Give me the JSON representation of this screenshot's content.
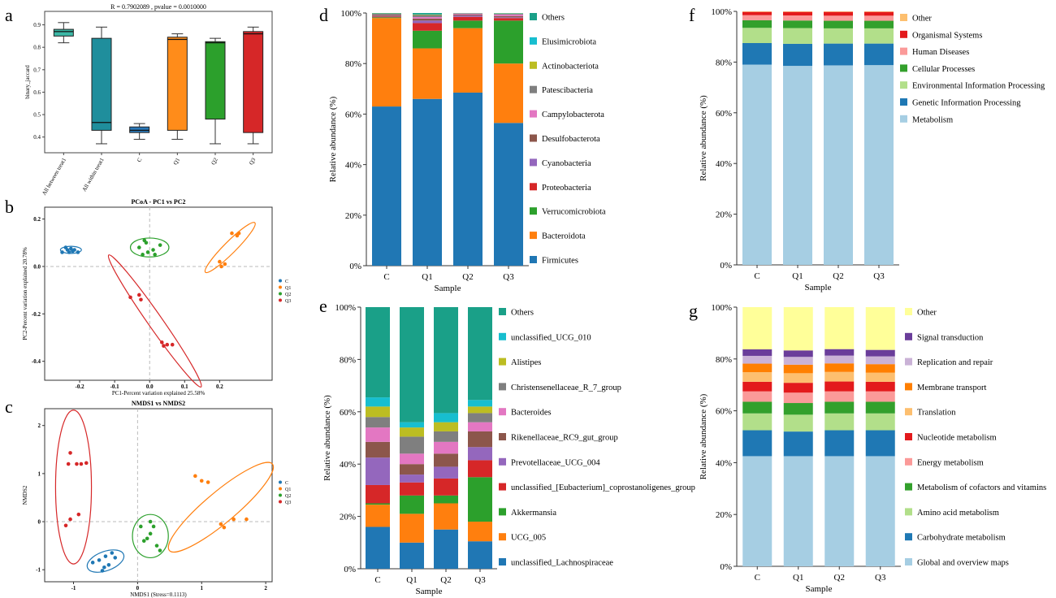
{
  "labels": {
    "a": "a",
    "b": "b",
    "c": "c",
    "d": "d",
    "e": "e",
    "f": "f",
    "g": "g"
  },
  "colors": {
    "ellipse_C": "#1f77b4",
    "ellipse_Q1": "#ff7f0e",
    "ellipse_Q2": "#2ca02c",
    "ellipse_Q3": "#d62728"
  },
  "chart_data": [
    {
      "id": "a",
      "type": "box",
      "title": "R = 0.7902089 , pvalue = 0.0010000",
      "ylabel": "binary_jaccard",
      "ylim": [
        0.33,
        0.96
      ],
      "yticks": [
        0.4,
        0.5,
        0.6,
        0.7,
        0.8,
        0.9
      ],
      "categories": [
        "All between treat1",
        "All within treat1",
        "C",
        "Q1",
        "Q2",
        "Q3"
      ],
      "colors": [
        "#3cb8a6",
        "#1f8e9c",
        "#2a78b8",
        "#ff8c1a",
        "#2ca02c",
        "#d62728"
      ],
      "boxes": [
        {
          "min": 0.82,
          "q1": 0.85,
          "median": 0.87,
          "q3": 0.88,
          "max": 0.91
        },
        {
          "min": 0.37,
          "q1": 0.43,
          "median": 0.465,
          "q3": 0.84,
          "max": 0.89
        },
        {
          "min": 0.39,
          "q1": 0.42,
          "median": 0.43,
          "q3": 0.445,
          "max": 0.46
        },
        {
          "min": 0.39,
          "q1": 0.43,
          "median": 0.835,
          "q3": 0.845,
          "max": 0.86
        },
        {
          "min": 0.37,
          "q1": 0.48,
          "median": 0.82,
          "q3": 0.825,
          "max": 0.84
        },
        {
          "min": 0.37,
          "q1": 0.42,
          "median": 0.86,
          "q3": 0.87,
          "max": 0.89
        }
      ]
    },
    {
      "id": "b",
      "type": "scatter",
      "title": "PCoA - PC1 vs PC2",
      "xlabel": "PC1-Percent variation explained 25.58%",
      "ylabel": "PC2-Percent variation explained 20.78%",
      "xlim": [
        -0.3,
        0.35
      ],
      "ylim": [
        -0.48,
        0.25
      ],
      "xticks": [
        -0.2,
        -0.1,
        0,
        0.1,
        0.2
      ],
      "xticklabels": [
        "-0.2",
        "-0.1",
        "0.0",
        "0.1",
        "0.2"
      ],
      "yticks": [
        0.2,
        0,
        -0.2,
        -0.4
      ],
      "yticklabels": [
        "0.2",
        "0.0",
        "-0.2",
        "-0.4"
      ],
      "legend": [
        "C",
        "Q1",
        "Q2",
        "Q3"
      ],
      "legend_position": "right",
      "series": [
        {
          "name": "C",
          "color": "#1f77b4",
          "points": [
            [
              -0.25,
              0.06
            ],
            [
              -0.24,
              0.08
            ],
            [
              -0.235,
              0.07
            ],
            [
              -0.23,
              0.06
            ],
            [
              -0.225,
              0.075
            ],
            [
              -0.22,
              0.065
            ],
            [
              -0.215,
              0.07
            ],
            [
              -0.205,
              0.06
            ]
          ],
          "ellipse": {
            "cx": -0.225,
            "cy": 0.07,
            "rx": 0.03,
            "ry": 0.015,
            "angle": 0
          }
        },
        {
          "name": "Q1",
          "color": "#ff7f0e",
          "points": [
            [
              0.2,
              0.02
            ],
            [
              0.205,
              0
            ],
            [
              0.215,
              0.01
            ],
            [
              0.235,
              0.14
            ],
            [
              0.25,
              0.13
            ],
            [
              0.255,
              0.14
            ]
          ],
          "ellipse": {
            "cx": 0.23,
            "cy": 0.08,
            "rx": 0.1,
            "ry": 0.025,
            "angle": -45
          }
        },
        {
          "name": "Q2",
          "color": "#2ca02c",
          "points": [
            [
              -0.03,
              0.08
            ],
            [
              -0.02,
              0.05
            ],
            [
              -0.015,
              0.11
            ],
            [
              -0.005,
              0.06
            ],
            [
              -0.01,
              0.1
            ],
            [
              0.01,
              0.07
            ],
            [
              0.03,
              0.09
            ],
            [
              0.015,
              0.05
            ]
          ],
          "ellipse": {
            "cx": 0,
            "cy": 0.08,
            "rx": 0.055,
            "ry": 0.04,
            "angle": 0
          }
        },
        {
          "name": "Q3",
          "color": "#d62728",
          "points": [
            [
              -0.055,
              -0.13
            ],
            [
              -0.025,
              -0.14
            ],
            [
              -0.03,
              -0.12
            ],
            [
              0.035,
              -0.32
            ],
            [
              0.04,
              -0.335
            ],
            [
              0.05,
              -0.33
            ],
            [
              0.065,
              -0.33
            ]
          ],
          "ellipse": {
            "cx": 0.015,
            "cy": -0.23,
            "rx": 0.23,
            "ry": 0.03,
            "angle": 55
          }
        }
      ]
    },
    {
      "id": "c",
      "type": "scatter",
      "title": "NMDS1 vs NMDS2",
      "xlabel": "NMDS1 (Stress=0.1113)",
      "ylabel": "NMDS2",
      "xlim": [
        -1.45,
        2.1
      ],
      "ylim": [
        -1.25,
        2.35
      ],
      "xticks": [
        -1,
        0,
        1,
        2
      ],
      "xticklabels": [
        "-1",
        "0",
        "1",
        "2"
      ],
      "yticks": [
        2,
        1,
        0,
        -1
      ],
      "yticklabels": [
        "2",
        "1",
        "0",
        "-1"
      ],
      "legend": [
        "C",
        "Q1",
        "Q2",
        "Q3"
      ],
      "legend_position": "right",
      "series": [
        {
          "name": "C",
          "color": "#1f77b4",
          "points": [
            [
              -0.7,
              -0.85
            ],
            [
              -0.6,
              -0.8
            ],
            [
              -0.55,
              -1.02
            ],
            [
              -0.5,
              -0.72
            ],
            [
              -0.45,
              -0.9
            ],
            [
              -0.4,
              -0.65
            ],
            [
              -0.35,
              -0.75
            ],
            [
              -0.52,
              -0.95
            ]
          ],
          "ellipse": {
            "cx": -0.5,
            "cy": -0.82,
            "rx": 0.3,
            "ry": 0.2,
            "angle": -20
          }
        },
        {
          "name": "Q1",
          "color": "#ff7f0e",
          "points": [
            [
              0.9,
              0.95
            ],
            [
              1.0,
              0.85
            ],
            [
              1.1,
              0.82
            ],
            [
              1.3,
              -0.05
            ],
            [
              1.5,
              0.05
            ],
            [
              1.35,
              -0.12
            ],
            [
              1.7,
              0.05
            ]
          ],
          "ellipse": {
            "cx": 1.3,
            "cy": 0.3,
            "rx": 1.05,
            "ry": 0.32,
            "angle": -40
          }
        },
        {
          "name": "Q2",
          "color": "#2ca02c",
          "points": [
            [
              0.05,
              -0.1
            ],
            [
              0.1,
              -0.4
            ],
            [
              0.15,
              -0.35
            ],
            [
              0.2,
              0
            ],
            [
              0.25,
              -0.1
            ],
            [
              0.3,
              -0.5
            ],
            [
              0.35,
              -0.6
            ],
            [
              0.2,
              -0.25
            ]
          ],
          "ellipse": {
            "cx": 0.2,
            "cy": -0.3,
            "rx": 0.28,
            "ry": 0.45,
            "angle": 0
          }
        },
        {
          "name": "Q3",
          "color": "#d62728",
          "points": [
            [
              -1.08,
              1.2
            ],
            [
              -1.05,
              1.43
            ],
            [
              -0.95,
              1.2
            ],
            [
              -0.88,
              1.2
            ],
            [
              -0.8,
              1.22
            ],
            [
              -1.05,
              0.05
            ],
            [
              -0.92,
              0.15
            ],
            [
              -1.12,
              -0.08
            ]
          ],
          "ellipse": {
            "cx": -1.0,
            "cy": 0.72,
            "rx": 0.28,
            "ry": 1.6,
            "angle": 0
          }
        }
      ]
    },
    {
      "id": "d",
      "type": "stacked_bar",
      "xlabel": "Sample",
      "ylabel": "Relative abundance (%)",
      "categories": [
        "C",
        "Q1",
        "Q2",
        "Q3"
      ],
      "yticklabels": [
        "0%",
        "20%",
        "40%",
        "60%",
        "80%",
        "100%"
      ],
      "series": [
        {
          "name": "Firmicutes",
          "color": "#2077b4",
          "values": [
            63,
            66,
            68.5,
            56.5
          ]
        },
        {
          "name": "Bacteroidota",
          "color": "#ff7f0e",
          "values": [
            35,
            20,
            25.5,
            23.5
          ]
        },
        {
          "name": "Verrucomicrobiota",
          "color": "#2ca02c",
          "values": [
            0.3,
            7,
            3,
            17
          ]
        },
        {
          "name": "Proteobacteria",
          "color": "#d62728",
          "values": [
            0.3,
            3,
            1.5,
            1
          ]
        },
        {
          "name": "Cyanobacteria",
          "color": "#9467bd",
          "values": [
            0.2,
            1,
            0.5,
            0.3
          ]
        },
        {
          "name": "Desulfobacterota",
          "color": "#8c564b",
          "values": [
            0.4,
            0.8,
            0.4,
            0.5
          ]
        },
        {
          "name": "Campylobacterota",
          "color": "#e377c2",
          "values": [
            0.1,
            0.6,
            0.3,
            0.6
          ]
        },
        {
          "name": "Patescibacteria",
          "color": "#7f7f7f",
          "values": [
            0.4,
            0.8,
            0.2,
            0.3
          ]
        },
        {
          "name": "Actinobacteriota",
          "color": "#bcbd22",
          "values": [
            0.1,
            0.2,
            0.05,
            0.1
          ]
        },
        {
          "name": "Elusimicrobiota",
          "color": "#17becf",
          "values": [
            0.05,
            0.1,
            0.05,
            0.1
          ]
        },
        {
          "name": "Others",
          "color": "#1aa088",
          "values": [
            0.15,
            0.5,
            0.0,
            0.1
          ]
        }
      ]
    },
    {
      "id": "e",
      "type": "stacked_bar",
      "xlabel": "Sample",
      "ylabel": "Relative abundance (%)",
      "categories": [
        "C",
        "Q1",
        "Q2",
        "Q3"
      ],
      "yticklabels": [
        "0%",
        "20%",
        "40%",
        "60%",
        "80%",
        "100%"
      ],
      "series": [
        {
          "name": "unclassified_Lachnospiraceae",
          "color": "#2077b4",
          "values": [
            16,
            10,
            15,
            10.5
          ]
        },
        {
          "name": "UCG_005",
          "color": "#ff7f0e",
          "values": [
            8.5,
            11,
            10,
            7.5
          ]
        },
        {
          "name": "Akkermansia",
          "color": "#2ca02c",
          "values": [
            0.5,
            7,
            3,
            17
          ]
        },
        {
          "name": "unclassified_[Eubacterium]_coprostanoligenes_group",
          "color": "#d62728",
          "values": [
            7,
            5,
            6.5,
            6.5
          ]
        },
        {
          "name": "Prevotellaceae_UCG_004",
          "color": "#9467bd",
          "values": [
            10.5,
            3,
            4.5,
            5
          ]
        },
        {
          "name": "Rikenellaceae_RC9_gut_group",
          "color": "#8c564b",
          "values": [
            6,
            4,
            5,
            6
          ]
        },
        {
          "name": "Bacteroides",
          "color": "#e377c2",
          "values": [
            5.5,
            4,
            4.5,
            3.5
          ]
        },
        {
          "name": "Christensenellaceae_R_7_group",
          "color": "#7f7f7f",
          "values": [
            4,
            6.5,
            4,
            3.5
          ]
        },
        {
          "name": "Alistipes",
          "color": "#bcbd22",
          "values": [
            4,
            3.5,
            3.5,
            2.5
          ]
        },
        {
          "name": "unclassified_UCG_010",
          "color": "#17becf",
          "values": [
            3.5,
            2,
            3.5,
            2.5
          ]
        },
        {
          "name": "Others",
          "color": "#1aa088",
          "values": [
            34.5,
            44,
            40.5,
            35.5
          ]
        }
      ]
    },
    {
      "id": "f",
      "type": "stacked_bar",
      "xlabel": "Sample",
      "ylabel": "Relative abundance (%)",
      "categories": [
        "C",
        "Q1",
        "Q2",
        "Q3"
      ],
      "yticklabels": [
        "0%",
        "20%",
        "40%",
        "60%",
        "80%",
        "100%"
      ],
      "series": [
        {
          "name": "Metabolism",
          "color": "#a6cee3",
          "values": [
            79,
            78.5,
            78.7,
            78.8
          ]
        },
        {
          "name": "Genetic Information Processing",
          "color": "#1f78b4",
          "values": [
            8.5,
            8.7,
            8.6,
            8.5
          ]
        },
        {
          "name": "Environmental Information Processing",
          "color": "#b2df8a",
          "values": [
            6,
            6.2,
            6,
            6
          ]
        },
        {
          "name": "Cellular Processes",
          "color": "#33a02c",
          "values": [
            3,
            3,
            3,
            3
          ]
        },
        {
          "name": "Human Diseases",
          "color": "#fb9a99",
          "values": [
            2,
            2,
            2,
            2
          ]
        },
        {
          "name": "Organismal Systems",
          "color": "#e31a1c",
          "values": [
            1.3,
            1.4,
            1.5,
            1.5
          ]
        },
        {
          "name": "Other",
          "color": "#fdbf6f",
          "values": [
            0.2,
            0.2,
            0.2,
            0.2
          ]
        }
      ]
    },
    {
      "id": "g",
      "type": "stacked_bar",
      "xlabel": "Sample",
      "ylabel": "Relative abundance (%)",
      "categories": [
        "C",
        "Q1",
        "Q2",
        "Q3"
      ],
      "yticklabels": [
        "0%",
        "20%",
        "40%",
        "60%",
        "80%",
        "100%"
      ],
      "series": [
        {
          "name": "Global and overview maps",
          "color": "#a6cee3",
          "values": [
            42.5,
            42.5,
            42.5,
            42.5
          ]
        },
        {
          "name": "Carbohydrate metabolism",
          "color": "#1f78b4",
          "values": [
            10,
            9.5,
            10,
            10
          ]
        },
        {
          "name": "Amino acid metabolism",
          "color": "#b2df8a",
          "values": [
            6.5,
            6.5,
            6.5,
            6.5
          ]
        },
        {
          "name": "Metabolism of cofactors and vitamins",
          "color": "#33a02c",
          "values": [
            4.5,
            4.5,
            4.5,
            4.5
          ]
        },
        {
          "name": "Energy metabolism",
          "color": "#fb9a99",
          "values": [
            4,
            4,
            4,
            4
          ]
        },
        {
          "name": "Nucleotide metabolism",
          "color": "#e31a1c",
          "values": [
            3.7,
            3.8,
            3.8,
            3.7
          ]
        },
        {
          "name": "Translation",
          "color": "#fdbf6f",
          "values": [
            3.7,
            3.7,
            3.7,
            3.5
          ]
        },
        {
          "name": "Membrane transport",
          "color": "#ff7f00",
          "values": [
            3.3,
            3.3,
            3.3,
            3.3
          ]
        },
        {
          "name": "Replication and repair",
          "color": "#cab2d6",
          "values": [
            3,
            3,
            3,
            3
          ]
        },
        {
          "name": "Signal transduction",
          "color": "#6a3d9a",
          "values": [
            2.5,
            2.5,
            2.5,
            2.5
          ]
        },
        {
          "name": "Other",
          "color": "#ffff99",
          "values": [
            16.3,
            16.7,
            16.2,
            16.5
          ]
        }
      ]
    }
  ]
}
